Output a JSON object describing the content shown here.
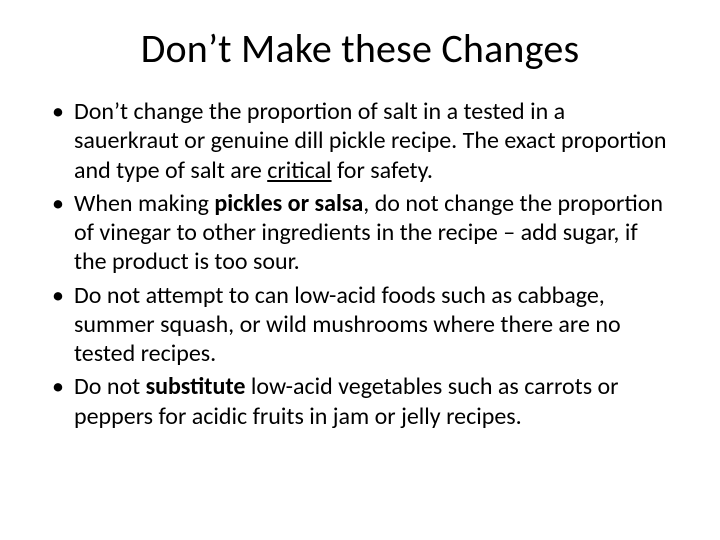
{
  "title": "Don’t Make these Changes",
  "bullets": [
    {
      "pre1": "Don’t change the proportion of salt in a tested in a sauerkraut  or genuine dill pickle recipe.  The exact proportion and type of salt are ",
      "u1": "critical",
      "post1": " for safety."
    },
    {
      "pre1": "When making ",
      "b1": "pickles or salsa",
      "post1": ", do not change the proportion of vinegar  to other ingredients in the recipe – add sugar, if the product is too sour."
    },
    {
      "pre1": "Do not attempt to can low-acid foods such as cabbage, summer squash, or wild mushrooms where there are no tested recipes."
    },
    {
      "pre1": "Do not ",
      "b1": "substitute",
      "post1": " low-acid vegetables such as carrots or peppers for acidic fruits in jam or jelly recipes."
    }
  ],
  "style": {
    "background_color": "#ffffff",
    "text_color": "#000000",
    "title_fontsize": 40,
    "body_fontsize": 24,
    "font_family": "Calibri"
  }
}
